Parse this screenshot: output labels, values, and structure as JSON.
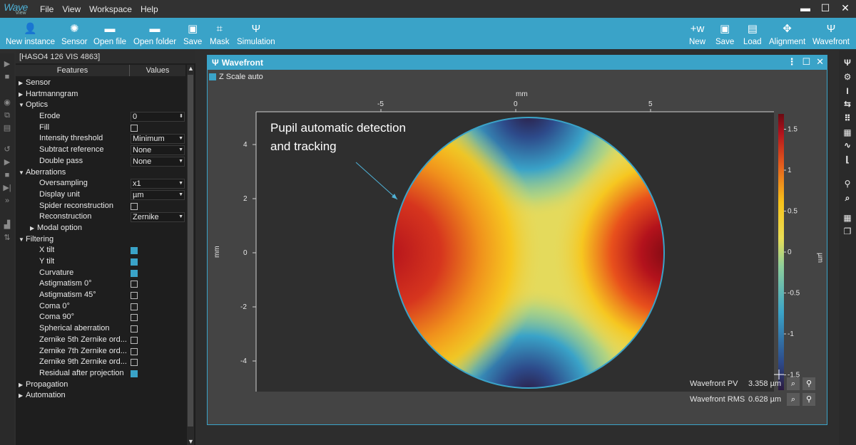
{
  "app": {
    "logo_top": "Wave",
    "logo_bottom": "View",
    "menu": [
      "File",
      "View",
      "Workspace",
      "Help"
    ]
  },
  "toolbar": {
    "left": [
      {
        "label": "New instance",
        "icon": "user-add-icon"
      },
      {
        "label": "Sensor",
        "icon": "aperture-icon"
      },
      {
        "label": "Open file",
        "icon": "folder-icon"
      },
      {
        "label": "Open folder",
        "icon": "folder-icon"
      },
      {
        "label": "Save",
        "icon": "floppy-icon"
      },
      {
        "label": "Mask",
        "icon": "crop-icon"
      },
      {
        "label": "Simulation",
        "icon": "psi-icon"
      }
    ],
    "right": [
      {
        "label": "New",
        "icon": "new-w-icon"
      },
      {
        "label": "Save",
        "icon": "floppy-icon"
      },
      {
        "label": "Load",
        "icon": "load-icon"
      },
      {
        "label": "Alignment",
        "icon": "alignment-icon"
      },
      {
        "label": "Wavefront",
        "icon": "psi-icon"
      }
    ]
  },
  "panel": {
    "device": "[HASO4 126 VIS 4863]",
    "col_features": "Features",
    "col_values": "Values",
    "rows": [
      {
        "level": 0,
        "arrow": "right",
        "label": "Sensor"
      },
      {
        "level": 0,
        "arrow": "right",
        "label": "Hartmanngram"
      },
      {
        "level": 0,
        "arrow": "down",
        "label": "Optics"
      },
      {
        "level": 1,
        "label": "Erode",
        "type": "spin",
        "value": "0"
      },
      {
        "level": 1,
        "label": "Fill",
        "type": "check",
        "checked": false
      },
      {
        "level": 1,
        "label": "Intensity threshold",
        "type": "combo",
        "value": "Minimum"
      },
      {
        "level": 1,
        "label": "Subtract reference",
        "type": "combo",
        "value": "None"
      },
      {
        "level": 1,
        "label": "Double pass",
        "type": "combo",
        "value": "None"
      },
      {
        "level": 0,
        "arrow": "down",
        "label": "Aberrations"
      },
      {
        "level": 1,
        "label": "Oversampling",
        "type": "combo",
        "value": "x1"
      },
      {
        "level": 1,
        "label": "Display unit",
        "type": "combo",
        "value": "µm"
      },
      {
        "level": 1,
        "label": "Spider reconstruction",
        "type": "check",
        "checked": false
      },
      {
        "level": 1,
        "label": "Reconstruction",
        "type": "combo",
        "value": "Zernike"
      },
      {
        "level": 1,
        "arrow": "right",
        "label": "Modal option"
      },
      {
        "level": 0,
        "arrow": "down",
        "label": "Filtering"
      },
      {
        "level": 1,
        "label": "X tilt",
        "type": "check",
        "checked": true
      },
      {
        "level": 1,
        "label": "Y tilt",
        "type": "check",
        "checked": true
      },
      {
        "level": 1,
        "label": "Curvature",
        "type": "check",
        "checked": true
      },
      {
        "level": 1,
        "label": "Astigmatism 0°",
        "type": "check",
        "checked": false
      },
      {
        "level": 1,
        "label": "Astigmatism 45°",
        "type": "check",
        "checked": false
      },
      {
        "level": 1,
        "label": "Coma 0°",
        "type": "check",
        "checked": false
      },
      {
        "level": 1,
        "label": "Coma 90°",
        "type": "check",
        "checked": false
      },
      {
        "level": 1,
        "label": "Spherical aberration",
        "type": "check",
        "checked": false
      },
      {
        "level": 1,
        "label": "Zernike 5th Zernike ord...",
        "type": "check",
        "checked": false
      },
      {
        "level": 1,
        "label": "Zernike 7th Zernike ord...",
        "type": "check",
        "checked": false
      },
      {
        "level": 1,
        "label": "Zernike 9th Zernike ord...",
        "type": "check",
        "checked": false
      },
      {
        "level": 1,
        "label": "Residual after projection",
        "type": "check",
        "checked": true
      },
      {
        "level": 0,
        "arrow": "right",
        "label": "Propagation"
      },
      {
        "level": 0,
        "arrow": "right",
        "label": "Automation"
      }
    ]
  },
  "wavefront": {
    "title": "Wavefront",
    "zscale_label": "Z Scale auto",
    "x_label": "mm",
    "y_label": "mm",
    "z_label": "µm",
    "x_ticks": [
      "-5",
      "0",
      "5"
    ],
    "y_ticks": [
      "4",
      "2",
      "0",
      "-2",
      "-4"
    ],
    "z_ticks": [
      "1.5",
      "1",
      "0.5",
      "0",
      "-0.5",
      "-1",
      "-1.5"
    ],
    "annotation_line1": "Pupil automatic detection",
    "annotation_line2": "and tracking",
    "pv_label": "Wavefront PV",
    "pv_value": "3.358 µm",
    "rms_label": "Wavefront RMS",
    "rms_value": "0.628 µm",
    "accent": "#3aa3c8"
  }
}
